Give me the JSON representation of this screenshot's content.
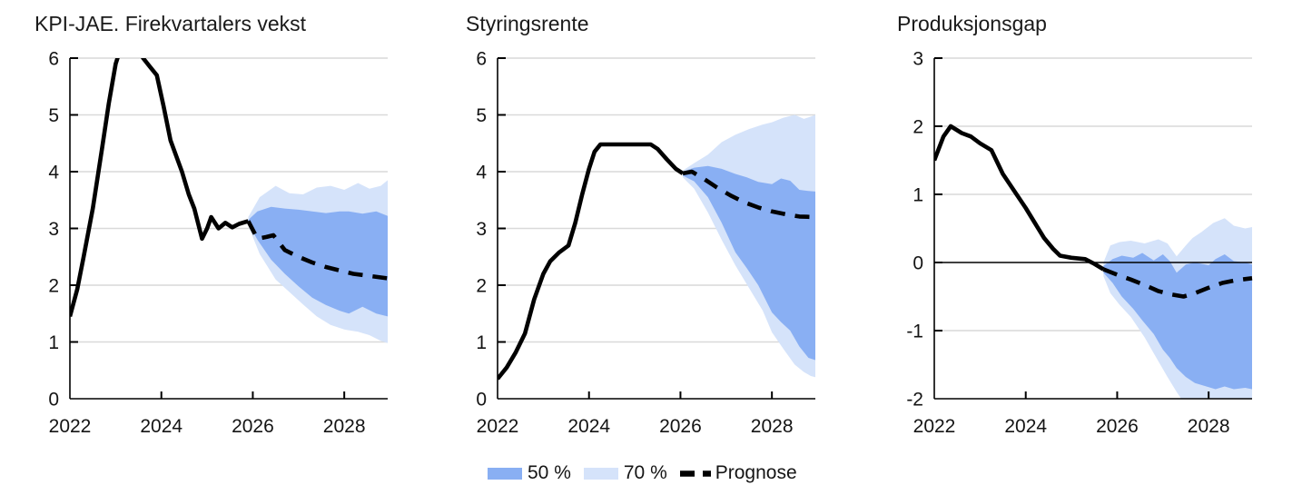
{
  "colors": {
    "band50": "#89AFF3",
    "band70": "#D5E3FA",
    "line": "#000000",
    "grid": "#D9D9D9",
    "axis": "#000000",
    "text": "#141414"
  },
  "legend": {
    "band50_label": "50 %",
    "band70_label": "70 %",
    "forecast_label": "Prognose"
  },
  "chart_data": [
    {
      "type": "area",
      "title": "KPI-JAE. Firekvartalers vekst",
      "x_range": [
        2022,
        2028.95
      ],
      "ylim": [
        0,
        6
      ],
      "yticks": [
        0,
        1,
        2,
        3,
        4,
        5,
        6
      ],
      "xtick_years": [
        2022,
        2024,
        2026,
        2028
      ],
      "xtick_labels": [
        "2022",
        "2024",
        "2026",
        "2028"
      ],
      "ticked_years": [
        2024,
        2026,
        2028
      ],
      "grid": true,
      "zero_line": false,
      "history": {
        "x": [
          2022.0,
          2022.16,
          2022.3,
          2022.5,
          2022.7,
          2022.85,
          2023.0,
          2023.1,
          2023.3,
          2023.45,
          2023.6,
          2023.75,
          2023.9,
          2024.05,
          2024.2,
          2024.45,
          2024.6,
          2024.72,
          2024.89,
          2025.0,
          2025.09,
          2025.25,
          2025.4,
          2025.55,
          2025.7,
          2025.9
        ],
        "y": [
          1.45,
          1.93,
          2.5,
          3.35,
          4.4,
          5.2,
          5.9,
          6.15,
          6.3,
          6.25,
          6.0,
          5.85,
          5.7,
          5.15,
          4.55,
          4.0,
          3.6,
          3.35,
          2.82,
          3.0,
          3.2,
          3.0,
          3.1,
          3.02,
          3.08,
          3.13
        ]
      },
      "forecast": {
        "x": [
          2025.9,
          2026.1,
          2026.3,
          2026.45,
          2026.7,
          2027.0,
          2027.3,
          2027.6,
          2027.9,
          2028.2,
          2028.5,
          2028.95
        ],
        "y": [
          3.13,
          2.82,
          2.85,
          2.88,
          2.62,
          2.5,
          2.4,
          2.32,
          2.26,
          2.2,
          2.17,
          2.12
        ]
      },
      "band50": {
        "x": [
          2025.9,
          2026.1,
          2026.4,
          2026.7,
          2027.0,
          2027.3,
          2027.6,
          2027.9,
          2028.1,
          2028.4,
          2028.7,
          2028.95
        ],
        "upper": [
          3.15,
          3.3,
          3.38,
          3.35,
          3.33,
          3.3,
          3.27,
          3.3,
          3.3,
          3.26,
          3.3,
          3.22
        ],
        "lower": [
          3.1,
          2.8,
          2.45,
          2.2,
          1.98,
          1.78,
          1.65,
          1.55,
          1.5,
          1.62,
          1.5,
          1.45
        ]
      },
      "band70": {
        "x": [
          2025.9,
          2026.15,
          2026.5,
          2026.8,
          2027.1,
          2027.4,
          2027.7,
          2028.0,
          2028.3,
          2028.55,
          2028.8,
          2028.95
        ],
        "upper": [
          3.2,
          3.55,
          3.75,
          3.62,
          3.6,
          3.72,
          3.75,
          3.68,
          3.8,
          3.7,
          3.75,
          3.85
        ],
        "lower": [
          3.05,
          2.55,
          2.1,
          1.88,
          1.66,
          1.45,
          1.3,
          1.22,
          1.18,
          1.12,
          1.02,
          0.98
        ]
      }
    },
    {
      "type": "area",
      "title": "Styringsrente",
      "x_range": [
        2022,
        2028.95
      ],
      "ylim": [
        0,
        6
      ],
      "yticks": [
        0,
        1,
        2,
        3,
        4,
        5,
        6
      ],
      "xtick_years": [
        2022,
        2024,
        2026,
        2028
      ],
      "xtick_labels": [
        "2022",
        "2024",
        "2026",
        "2028"
      ],
      "ticked_years": [
        2024,
        2026,
        2028
      ],
      "grid": true,
      "zero_line": false,
      "history": {
        "x": [
          2022.0,
          2022.2,
          2022.4,
          2022.6,
          2022.8,
          2023.0,
          2023.15,
          2023.35,
          2023.55,
          2023.7,
          2023.85,
          2024.0,
          2024.12,
          2024.25,
          2025.0,
          2025.35,
          2025.5,
          2025.7,
          2025.9,
          2026.05
        ],
        "y": [
          0.35,
          0.55,
          0.82,
          1.15,
          1.75,
          2.2,
          2.42,
          2.58,
          2.7,
          3.1,
          3.6,
          4.05,
          4.35,
          4.48,
          4.48,
          4.48,
          4.4,
          4.22,
          4.05,
          3.97
        ]
      },
      "forecast": {
        "x": [
          2026.05,
          2026.25,
          2026.5,
          2026.8,
          2027.1,
          2027.4,
          2027.7,
          2028.0,
          2028.3,
          2028.6,
          2028.95
        ],
        "y": [
          3.97,
          4.0,
          3.88,
          3.72,
          3.58,
          3.46,
          3.37,
          3.3,
          3.25,
          3.21,
          3.2
        ]
      },
      "band50": {
        "x": [
          2026.05,
          2026.3,
          2026.6,
          2026.9,
          2027.2,
          2027.45,
          2027.7,
          2028.0,
          2028.2,
          2028.4,
          2028.6,
          2028.8,
          2028.95
        ],
        "upper": [
          4.0,
          4.07,
          4.1,
          4.05,
          3.96,
          3.9,
          3.82,
          3.78,
          3.88,
          3.84,
          3.68,
          3.66,
          3.65
        ],
        "lower": [
          3.93,
          3.83,
          3.55,
          3.1,
          2.58,
          2.3,
          2.0,
          1.52,
          1.35,
          1.2,
          0.92,
          0.72,
          0.68
        ]
      },
      "band70": {
        "x": [
          2026.05,
          2026.3,
          2026.6,
          2026.9,
          2027.2,
          2027.5,
          2027.8,
          2028.0,
          2028.25,
          2028.5,
          2028.7,
          2028.85,
          2028.95
        ],
        "upper": [
          4.02,
          4.15,
          4.3,
          4.52,
          4.65,
          4.75,
          4.83,
          4.87,
          4.95,
          5.0,
          4.93,
          4.97,
          5.0
        ],
        "lower": [
          3.9,
          3.7,
          3.28,
          2.8,
          2.35,
          1.95,
          1.55,
          1.17,
          0.88,
          0.6,
          0.47,
          0.4,
          0.38
        ]
      }
    },
    {
      "type": "area",
      "title": "Produksjonsgap",
      "x_range": [
        2022,
        2028.95
      ],
      "ylim": [
        -2,
        3
      ],
      "yticks": [
        -2,
        -1,
        0,
        1,
        2,
        3
      ],
      "xtick_years": [
        2022,
        2024,
        2026,
        2028
      ],
      "xtick_labels": [
        "2022",
        "2024",
        "2026",
        "2028"
      ],
      "ticked_years": [
        2024,
        2026,
        2028
      ],
      "grid": true,
      "zero_line": true,
      "history": {
        "x": [
          2022.0,
          2022.2,
          2022.36,
          2022.6,
          2022.8,
          2023.0,
          2023.25,
          2023.5,
          2023.8,
          2024.0,
          2024.2,
          2024.4,
          2024.6,
          2024.75,
          2025.0,
          2025.3,
          2025.5,
          2025.7
        ],
        "y": [
          1.5,
          1.85,
          2.0,
          1.9,
          1.85,
          1.75,
          1.65,
          1.3,
          1.0,
          0.8,
          0.58,
          0.36,
          0.2,
          0.1,
          0.07,
          0.05,
          -0.02,
          -0.1
        ]
      },
      "forecast": {
        "x": [
          2025.7,
          2026.0,
          2026.3,
          2026.6,
          2026.9,
          2027.2,
          2027.45,
          2027.7,
          2028.0,
          2028.3,
          2028.6,
          2028.95
        ],
        "y": [
          -0.1,
          -0.18,
          -0.25,
          -0.33,
          -0.42,
          -0.47,
          -0.5,
          -0.45,
          -0.37,
          -0.3,
          -0.26,
          -0.23
        ]
      },
      "band50": {
        "x": [
          2025.7,
          2025.9,
          2026.1,
          2026.35,
          2026.55,
          2026.8,
          2027.0,
          2027.15,
          2027.3,
          2027.5,
          2027.7,
          2028.0,
          2028.15,
          2028.35,
          2028.55,
          2028.8,
          2028.95
        ],
        "upper": [
          -0.05,
          0.05,
          0.1,
          0.07,
          0.14,
          0.03,
          0.12,
          0.02,
          -0.15,
          -0.03,
          0.0,
          -0.04,
          0.05,
          0.12,
          0.02,
          0.0,
          -0.03
        ],
        "lower": [
          -0.15,
          -0.3,
          -0.5,
          -0.68,
          -0.85,
          -1.05,
          -1.28,
          -1.4,
          -1.55,
          -1.68,
          -1.77,
          -1.83,
          -1.86,
          -1.82,
          -1.86,
          -1.84,
          -1.86
        ]
      },
      "band70": {
        "x": [
          2025.7,
          2025.85,
          2026.05,
          2026.3,
          2026.6,
          2026.9,
          2027.1,
          2027.3,
          2027.5,
          2027.65,
          2027.85,
          2028.1,
          2028.35,
          2028.55,
          2028.8,
          2028.95
        ],
        "upper": [
          0.0,
          0.25,
          0.3,
          0.32,
          0.28,
          0.34,
          0.28,
          0.09,
          0.25,
          0.36,
          0.45,
          0.58,
          0.65,
          0.54,
          0.5,
          0.52
        ],
        "lower": [
          -0.2,
          -0.45,
          -0.62,
          -0.8,
          -1.1,
          -1.45,
          -1.68,
          -1.9,
          -2.1,
          -2.15,
          -2.15,
          -2.15,
          -2.1,
          -2.1,
          -2.05,
          -2.05
        ]
      }
    }
  ]
}
